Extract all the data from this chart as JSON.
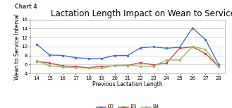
{
  "title": "Lactation Length Impact on Wean to Service",
  "chart_label": "Chart 4",
  "xlabel": "Previous Lactation Length",
  "ylabel": "Wean to Service Interval",
  "x": [
    14,
    15,
    16,
    17,
    18,
    19,
    20,
    21,
    22,
    23,
    24,
    25,
    26,
    27,
    28
  ],
  "P2": [
    10.5,
    8.1,
    8.0,
    7.5,
    7.3,
    7.3,
    8.0,
    8.0,
    9.7,
    9.9,
    9.6,
    9.8,
    14.1,
    11.5,
    6.0
  ],
  "P3": [
    6.7,
    6.3,
    5.7,
    5.5,
    5.3,
    5.6,
    5.7,
    5.8,
    6.4,
    5.9,
    6.3,
    9.6,
    9.9,
    8.4,
    5.5
  ],
  "P4": [
    6.8,
    5.7,
    5.4,
    5.3,
    5.2,
    5.2,
    5.8,
    5.9,
    5.6,
    5.6,
    7.0,
    7.0,
    10.0,
    9.3,
    5.5
  ],
  "P2_color": "#4472C4",
  "P3_color": "#C0504D",
  "P4_color": "#9BBB59",
  "ylim": [
    4,
    16
  ],
  "yticks": [
    4,
    6,
    8,
    10,
    12,
    14,
    16
  ],
  "title_fontsize": 8.5,
  "label_fontsize": 5.5,
  "tick_fontsize": 5,
  "legend_fontsize": 5.5,
  "bg_color": "#FFFFFF",
  "grid_color": "#CCCCCC",
  "border_color": "#AAAAAA"
}
